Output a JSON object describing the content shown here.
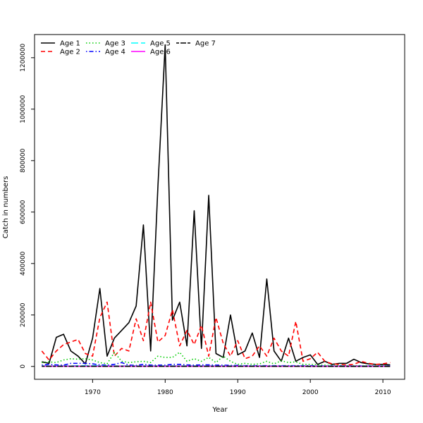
{
  "chart_data": {
    "type": "line",
    "title": "",
    "xlabel": "Year",
    "ylabel": "Catch in numbers",
    "xlim": [
      1962.0,
      2013.0
    ],
    "ylim": [
      -50000,
      1290000
    ],
    "x_ticks": [
      1970,
      1980,
      1990,
      2000,
      2010
    ],
    "y_ticks": [
      0,
      200000,
      400000,
      600000,
      800000,
      1000000,
      1200000
    ],
    "x_tick_labels": [
      "1970",
      "1980",
      "1990",
      "2000",
      "2010"
    ],
    "y_tick_labels": [
      "0",
      "200000",
      "400000",
      "600000",
      "800000",
      "1000000",
      "1200000"
    ],
    "grid": false,
    "legend_position": "top-left",
    "x": [
      1963,
      1964,
      1965,
      1966,
      1967,
      1968,
      1969,
      1970,
      1971,
      1972,
      1973,
      1974,
      1975,
      1976,
      1977,
      1978,
      1979,
      1980,
      1981,
      1982,
      1983,
      1984,
      1985,
      1986,
      1987,
      1988,
      1989,
      1990,
      1991,
      1992,
      1993,
      1994,
      1995,
      1996,
      1997,
      1998,
      1999,
      2000,
      2001,
      2002,
      2003,
      2004,
      2005,
      2006,
      2007,
      2008,
      2009,
      2010,
      2011
    ],
    "series": [
      {
        "name": "Age 1",
        "color": "#000000",
        "dash": "solid",
        "values": [
          18000,
          12000,
          113000,
          125000,
          60000,
          40000,
          10000,
          110000,
          303000,
          40000,
          110000,
          140000,
          170000,
          235000,
          550000,
          60000,
          700000,
          1250000,
          180000,
          250000,
          80000,
          605000,
          70000,
          665000,
          50000,
          35000,
          200000,
          45000,
          60000,
          130000,
          35000,
          340000,
          60000,
          20000,
          110000,
          20000,
          35000,
          45000,
          8000,
          20000,
          8000,
          12000,
          12000,
          28000,
          15000,
          10000,
          8000,
          8000,
          6000
        ]
      },
      {
        "name": "Age 2",
        "color": "#ff0000",
        "dash": "dashed",
        "values": [
          60000,
          25000,
          60000,
          85000,
          95000,
          105000,
          50000,
          40000,
          190000,
          250000,
          40000,
          70000,
          60000,
          185000,
          100000,
          250000,
          95000,
          120000,
          220000,
          80000,
          140000,
          85000,
          160000,
          40000,
          190000,
          90000,
          40000,
          100000,
          30000,
          40000,
          80000,
          40000,
          110000,
          60000,
          40000,
          175000,
          20000,
          30000,
          55000,
          20000,
          10000,
          8000,
          6000,
          8000,
          20000,
          12000,
          8000,
          10000,
          15000
        ]
      },
      {
        "name": "Age 3",
        "color": "#00cd00",
        "dash": "dotted",
        "values": [
          15000,
          18000,
          15000,
          25000,
          30000,
          28000,
          30000,
          25000,
          15000,
          10000,
          55000,
          20000,
          15000,
          18000,
          20000,
          15000,
          40000,
          35000,
          35000,
          55000,
          20000,
          30000,
          20000,
          35000,
          15000,
          40000,
          20000,
          8000,
          12000,
          8000,
          10000,
          20000,
          10000,
          22000,
          15000,
          18000,
          8000,
          8000,
          6000,
          5000,
          4000,
          4000,
          3000,
          3000,
          3000,
          3000,
          3000,
          3000,
          3000
        ]
      },
      {
        "name": "Age 4",
        "color": "#0000ff",
        "dash": "dotdash",
        "values": [
          5000,
          8000,
          6000,
          5000,
          12000,
          12000,
          12000,
          10000,
          6000,
          5000,
          8000,
          15000,
          5000,
          4000,
          8000,
          5000,
          5000,
          5000,
          8000,
          8000,
          6000,
          5000,
          6000,
          6000,
          5000,
          5000,
          4000,
          4000,
          3000,
          3000,
          3000,
          3000,
          3000,
          3000,
          3000,
          3000,
          3000,
          3000,
          2000,
          2000,
          2000,
          2000,
          2000,
          2000,
          2000,
          2000,
          2000,
          2000,
          2000
        ]
      },
      {
        "name": "Age 5",
        "color": "#00ffff",
        "dash": "longdash",
        "values": [
          2000,
          2000,
          2000,
          2000,
          2000,
          3000,
          3000,
          3000,
          3000,
          2000,
          2000,
          2000,
          2000,
          2000,
          2000,
          2000,
          2000,
          2000,
          2000,
          2000,
          2000,
          2000,
          2000,
          2000,
          2000,
          2000,
          2000,
          2000,
          2000,
          2000,
          2000,
          2000,
          2000,
          2000,
          2000,
          2000,
          2000,
          1000,
          1000,
          1000,
          1000,
          1000,
          1000,
          1000,
          1000,
          1000,
          1000,
          1000,
          1000
        ]
      },
      {
        "name": "Age 6",
        "color": "#ff00ff",
        "dash": "solid",
        "values": [
          1000,
          1000,
          1000,
          1000,
          1000,
          1000,
          1000,
          1000,
          1000,
          1000,
          1000,
          1000,
          1000,
          1000,
          1000,
          1000,
          1000,
          1000,
          1000,
          1000,
          1000,
          1000,
          1000,
          1000,
          1000,
          1000,
          1000,
          1000,
          1000,
          1000,
          1000,
          1000,
          1000,
          1000,
          1000,
          1000,
          1000,
          500,
          500,
          500,
          500,
          500,
          500,
          500,
          500,
          500,
          500,
          500,
          500
        ]
      },
      {
        "name": "Age 7",
        "color": "#000000",
        "dash": "twodash",
        "values": [
          500,
          500,
          500,
          500,
          500,
          500,
          500,
          500,
          500,
          500,
          500,
          500,
          500,
          500,
          500,
          500,
          500,
          500,
          500,
          500,
          500,
          500,
          500,
          500,
          500,
          500,
          500,
          500,
          500,
          500,
          500,
          500,
          500,
          500,
          500,
          500,
          500,
          300,
          300,
          300,
          300,
          300,
          300,
          300,
          300,
          300,
          300,
          300,
          300
        ]
      }
    ]
  }
}
